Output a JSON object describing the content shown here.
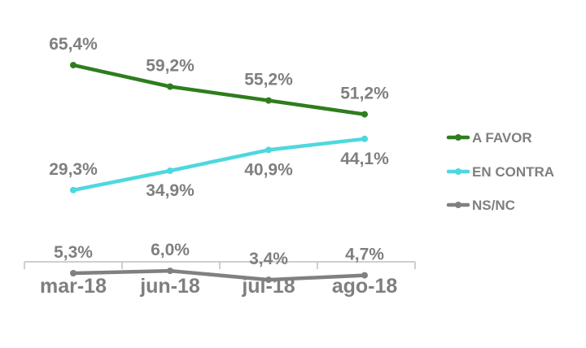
{
  "chart_data": {
    "type": "line",
    "categories": [
      "mar-18",
      "jun-18",
      "jul-18",
      "ago-18"
    ],
    "series": [
      {
        "name": "A FAVOR",
        "values": [
          65.4,
          59.2,
          55.2,
          51.2
        ],
        "labels": [
          "65,4%",
          "59,2%",
          "55,2%",
          "51,2%"
        ],
        "color": "#2e7d1e"
      },
      {
        "name": "EN CONTRA",
        "values": [
          29.3,
          34.9,
          40.9,
          44.1
        ],
        "labels": [
          "29,3%",
          "34,9%",
          "40,9%",
          "44,1%"
        ],
        "color": "#4dd8de"
      },
      {
        "name": "NS/NC",
        "values": [
          5.3,
          6.0,
          3.4,
          4.7
        ],
        "labels": [
          "5,3%",
          "6,0%",
          "3,4%",
          "4,7%"
        ],
        "color": "#808080"
      }
    ],
    "title": "",
    "xlabel": "",
    "ylabel": "",
    "grid": false,
    "legend": "right"
  }
}
